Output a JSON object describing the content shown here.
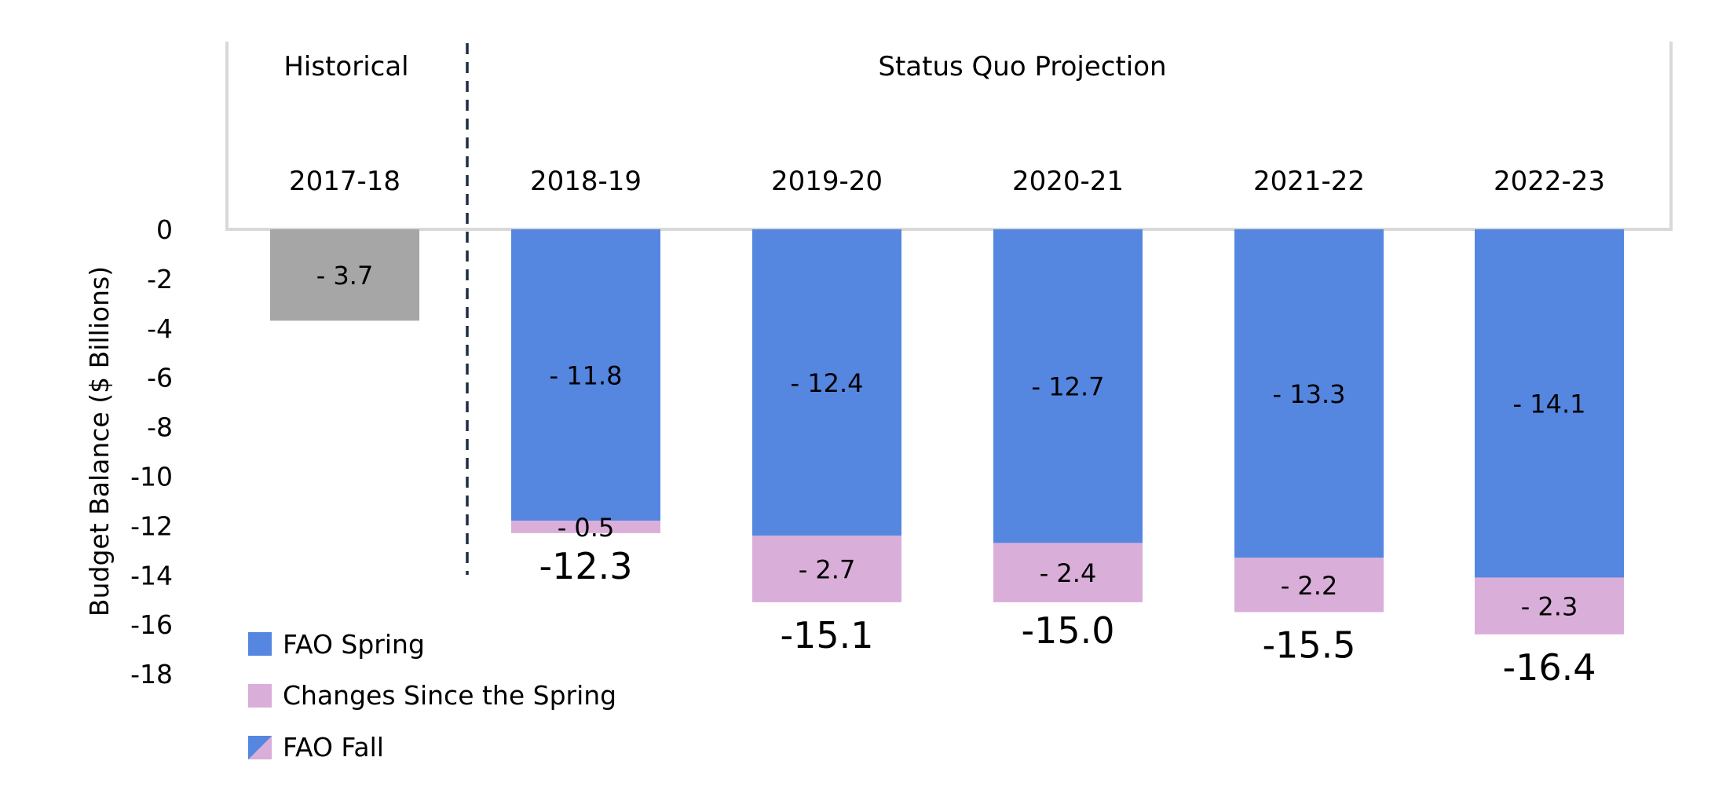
{
  "chart_data": {
    "type": "bar",
    "stacked": true,
    "sections": [
      "Historical",
      "Status Quo Projection"
    ],
    "categories": [
      "2017-18",
      "2018-19",
      "2019-20",
      "2020-21",
      "2021-22",
      "2022-23"
    ],
    "historical": {
      "category": "2017-18",
      "value": -3.7,
      "label": "- 3.7",
      "color": "#a6a6a6"
    },
    "series": [
      {
        "name": "FAO Spring",
        "color": "#5586e0",
        "values": [
          null,
          -11.8,
          -12.4,
          -12.7,
          -13.3,
          -14.1
        ],
        "labels": [
          "",
          "- 11.8",
          "- 12.4",
          "- 12.7",
          "- 13.3",
          "- 14.1"
        ]
      },
      {
        "name": "Changes Since the Spring",
        "color": "#d9aed9",
        "values": [
          null,
          -0.5,
          -2.7,
          -2.4,
          -2.2,
          -2.3
        ],
        "labels": [
          "",
          "- 0.5",
          "- 2.7",
          "- 2.4",
          "- 2.2",
          "- 2.3"
        ]
      }
    ],
    "totals": [
      null,
      "-12.3",
      "-15.1",
      "-15.0",
      "-15.5",
      "-16.4"
    ],
    "legend": [
      "FAO Spring",
      "Changes Since the Spring",
      "FAO Fall"
    ],
    "ylabel": "Budget Balance ($ Billions)",
    "ylim": [
      -18,
      0
    ],
    "yticks": [
      "0",
      "-2",
      "-4",
      "-6",
      "-8",
      "-10",
      "-12",
      "-14",
      "-16",
      "-18"
    ],
    "legend_position": "bottom-left"
  }
}
